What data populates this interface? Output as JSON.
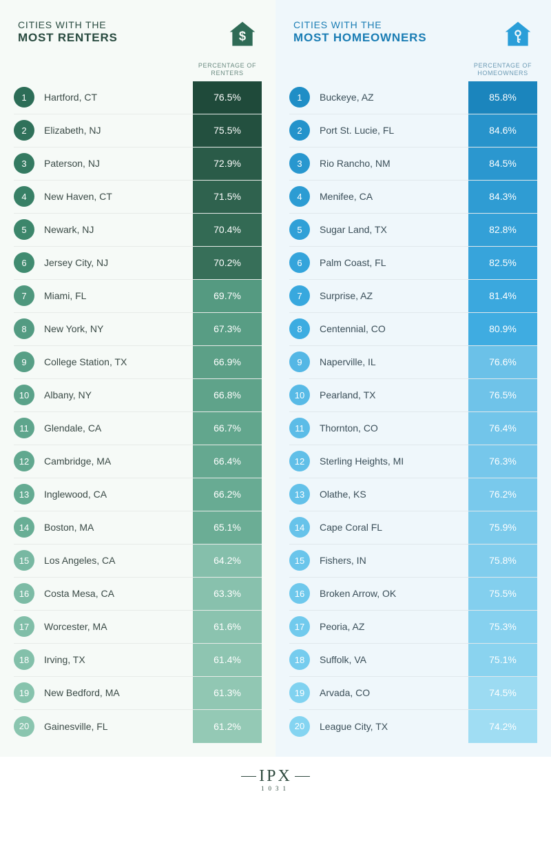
{
  "left": {
    "title_line1": "CITIES WITH THE",
    "title_line2": "MOST RENTERS",
    "col_header_l1": "PERCENTAGE OF",
    "col_header_l2": "RENTERS",
    "icon_color": "#2f6b56",
    "rows": [
      {
        "rank": "1",
        "city": "Hartford, CT",
        "pct": "76.5%",
        "rank_bg": "#2c6d57",
        "pct_bg": "#1f4a3a"
      },
      {
        "rank": "2",
        "city": "Elizabeth, NJ",
        "pct": "75.5%",
        "rank_bg": "#2f715a",
        "pct_bg": "#23503f"
      },
      {
        "rank": "3",
        "city": "Paterson, NJ",
        "pct": "72.9%",
        "rank_bg": "#347a61",
        "pct_bg": "#2a5b48"
      },
      {
        "rank": "4",
        "city": "New Haven, CT",
        "pct": "71.5%",
        "rank_bg": "#388066",
        "pct_bg": "#2f624e"
      },
      {
        "rank": "5",
        "city": "Newark, NJ",
        "pct": "70.4%",
        "rank_bg": "#3c866b",
        "pct_bg": "#336a54"
      },
      {
        "rank": "6",
        "city": "Jersey City, NJ",
        "pct": "70.2%",
        "rank_bg": "#408b70",
        "pct_bg": "#376f59"
      },
      {
        "rank": "7",
        "city": "Miami, FL",
        "pct": "69.7%",
        "rank_bg": "#4e977d",
        "pct_bg": "#559a81"
      },
      {
        "rank": "8",
        "city": "New York, NY",
        "pct": "67.3%",
        "rank_bg": "#539b82",
        "pct_bg": "#589d84"
      },
      {
        "rank": "9",
        "city": "College Station, TX",
        "pct": "66.9%",
        "rank_bg": "#579f86",
        "pct_bg": "#5ca087"
      },
      {
        "rank": "10",
        "city": "Albany, NY",
        "pct": "66.8%",
        "rank_bg": "#5aa289",
        "pct_bg": "#5fa38a"
      },
      {
        "rank": "11",
        "city": "Glendale, CA",
        "pct": "66.7%",
        "rank_bg": "#5ea58c",
        "pct_bg": "#62a68d"
      },
      {
        "rank": "12",
        "city": "Cambridge, MA",
        "pct": "66.4%",
        "rank_bg": "#61a88f",
        "pct_bg": "#65a890"
      },
      {
        "rank": "13",
        "city": "Inglewood, CA",
        "pct": "66.2%",
        "rank_bg": "#64ab92",
        "pct_bg": "#68ab93"
      },
      {
        "rank": "14",
        "city": "Boston, MA",
        "pct": "65.1%",
        "rank_bg": "#68ae95",
        "pct_bg": "#6bad95"
      },
      {
        "rank": "15",
        "city": "Los Angeles, CA",
        "pct": "64.2%",
        "rank_bg": "#78b8a2",
        "pct_bg": "#85bfab"
      },
      {
        "rank": "16",
        "city": "Costa Mesa, CA",
        "pct": "63.3%",
        "rank_bg": "#7cbba5",
        "pct_bg": "#88c1ad"
      },
      {
        "rank": "17",
        "city": "Worcester, MA",
        "pct": "61.6%",
        "rank_bg": "#80bea8",
        "pct_bg": "#8bc3af"
      },
      {
        "rank": "18",
        "city": "Irving, TX",
        "pct": "61.4%",
        "rank_bg": "#83c0aa",
        "pct_bg": "#8ec5b1"
      },
      {
        "rank": "19",
        "city": "New Bedford, MA",
        "pct": "61.3%",
        "rank_bg": "#87c3ad",
        "pct_bg": "#91c7b3"
      },
      {
        "rank": "20",
        "city": "Gainesville, FL",
        "pct": "61.2%",
        "rank_bg": "#8ac5af",
        "pct_bg": "#94c9b5"
      }
    ]
  },
  "right": {
    "title_line1": "CITIES WITH THE",
    "title_line2": "MOST HOMEOWNERS",
    "col_header_l1": "PERCENTAGE OF",
    "col_header_l2": "HOMEOWNERS",
    "icon_color": "#2a9ed8",
    "rows": [
      {
        "rank": "1",
        "city": "Buckeye, AZ",
        "pct": "85.8%",
        "rank_bg": "#1f8ec6",
        "pct_bg": "#1b85bd"
      },
      {
        "rank": "2",
        "city": "Port St. Lucie, FL",
        "pct": "84.6%",
        "rank_bg": "#2493cb",
        "pct_bg": "#2793cb"
      },
      {
        "rank": "3",
        "city": "Rio Rancho, NM",
        "pct": "84.5%",
        "rank_bg": "#2897cf",
        "pct_bg": "#2b97cf"
      },
      {
        "rank": "4",
        "city": "Menifee, CA",
        "pct": "84.3%",
        "rank_bg": "#2c9cd3",
        "pct_bg": "#2f9cd3"
      },
      {
        "rank": "5",
        "city": "Sugar Land, TX",
        "pct": "82.8%",
        "rank_bg": "#30a0d7",
        "pct_bg": "#33a0d7"
      },
      {
        "rank": "6",
        "city": "Palm Coast, FL",
        "pct": "82.5%",
        "rank_bg": "#34a4db",
        "pct_bg": "#37a4db"
      },
      {
        "rank": "7",
        "city": "Surprise, AZ",
        "pct": "81.4%",
        "rank_bg": "#38a8de",
        "pct_bg": "#3ba8de"
      },
      {
        "rank": "8",
        "city": "Centennial, CO",
        "pct": "80.9%",
        "rank_bg": "#3cace1",
        "pct_bg": "#3facE1"
      },
      {
        "rank": "9",
        "city": "Naperville, IL",
        "pct": "76.6%",
        "rank_bg": "#54b7e5",
        "pct_bg": "#6bc1e8"
      },
      {
        "rank": "10",
        "city": "Pearland, TX",
        "pct": "76.5%",
        "rank_bg": "#58bae6",
        "pct_bg": "#6fc3e9"
      },
      {
        "rank": "11",
        "city": "Thornton, CO",
        "pct": "76.4%",
        "rank_bg": "#5cbce7",
        "pct_bg": "#72c5ea"
      },
      {
        "rank": "12",
        "city": "Sterling Heights, MI",
        "pct": "76.3%",
        "rank_bg": "#60bfe8",
        "pct_bg": "#76c7eb"
      },
      {
        "rank": "13",
        "city": "Olathe, KS",
        "pct": "76.2%",
        "rank_bg": "#63c1e9",
        "pct_bg": "#79c9ec"
      },
      {
        "rank": "14",
        "city": "Cape Coral FL",
        "pct": "75.9%",
        "rank_bg": "#67c3ea",
        "pct_bg": "#7ccbec"
      },
      {
        "rank": "15",
        "city": "Fishers, IN",
        "pct": "75.8%",
        "rank_bg": "#6ac5eb",
        "pct_bg": "#80cded"
      },
      {
        "rank": "16",
        "city": "Broken Arrow, OK",
        "pct": "75.5%",
        "rank_bg": "#6ec8ec",
        "pct_bg": "#83cfee"
      },
      {
        "rank": "17",
        "city": "Peoria, AZ",
        "pct": "75.3%",
        "rank_bg": "#71caed",
        "pct_bg": "#86d1ef"
      },
      {
        "rank": "18",
        "city": "Suffolk, VA",
        "pct": "75.1%",
        "rank_bg": "#75ccee",
        "pct_bg": "#8ad3ef"
      },
      {
        "rank": "19",
        "city": "Arvada, CO",
        "pct": "74.5%",
        "rank_bg": "#80d2f0",
        "pct_bg": "#9cdbf2"
      },
      {
        "rank": "20",
        "city": "League City, TX",
        "pct": "74.2%",
        "rank_bg": "#84d4f1",
        "pct_bg": "#a0ddf3"
      }
    ]
  },
  "footer": {
    "logo_main": "IPX",
    "logo_sub": "1031"
  }
}
